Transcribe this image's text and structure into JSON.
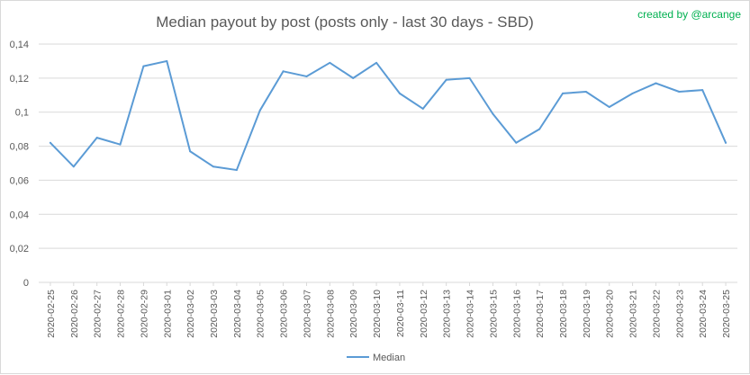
{
  "credit": "created by @arcange",
  "colors": {
    "line": "#5b9bd5",
    "grid": "#d9d9d9",
    "text": "#595959",
    "credit": "#00b050"
  },
  "chart_data": {
    "type": "line",
    "title": "Median payout by post (posts only - last 30 days - SBD)",
    "xlabel": "",
    "ylabel": "",
    "ylim": [
      0,
      0.14
    ],
    "yticks": [
      "0",
      "0,02",
      "0,04",
      "0,06",
      "0,08",
      "0,1",
      "0,12",
      "0,14"
    ],
    "grid": "horizontal",
    "legend_position": "bottom",
    "categories": [
      "2020-02-25",
      "2020-02-26",
      "2020-02-27",
      "2020-02-28",
      "2020-02-29",
      "2020-03-01",
      "2020-03-02",
      "2020-03-03",
      "2020-03-04",
      "2020-03-05",
      "2020-03-06",
      "2020-03-07",
      "2020-03-08",
      "2020-03-09",
      "2020-03-10",
      "2020-03-11",
      "2020-03-12",
      "2020-03-13",
      "2020-03-14",
      "2020-03-15",
      "2020-03-16",
      "2020-03-17",
      "2020-03-18",
      "2020-03-19",
      "2020-03-20",
      "2020-03-21",
      "2020-03-22",
      "2020-03-23",
      "2020-03-24",
      "2020-03-25"
    ],
    "series": [
      {
        "name": "Median",
        "values": [
          0.082,
          0.068,
          0.085,
          0.081,
          0.127,
          0.13,
          0.077,
          0.068,
          0.066,
          0.101,
          0.124,
          0.121,
          0.129,
          0.12,
          0.129,
          0.111,
          0.102,
          0.119,
          0.12,
          0.099,
          0.082,
          0.09,
          0.111,
          0.112,
          0.103,
          0.111,
          0.117,
          0.112,
          0.113,
          0.082
        ]
      }
    ]
  }
}
